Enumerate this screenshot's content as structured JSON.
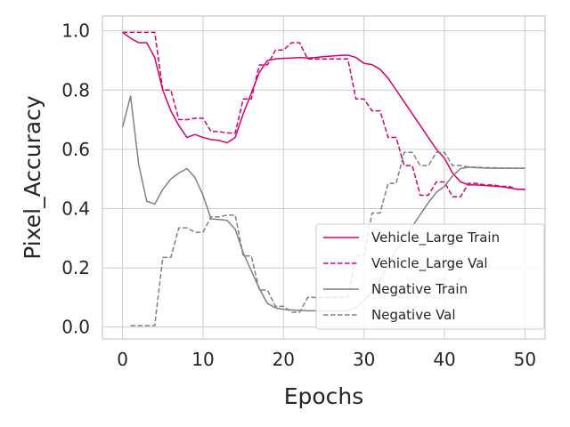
{
  "chart_data": {
    "type": "line",
    "title": "",
    "xlabel": "Epochs",
    "ylabel": "Pixel_Accuracy",
    "xlim": [
      -2.5,
      52.5
    ],
    "ylim": [
      -0.04,
      1.05
    ],
    "xticks": [
      0,
      10,
      20,
      30,
      40,
      50
    ],
    "yticks": [
      0.0,
      0.2,
      0.4,
      0.6,
      0.8,
      1.0
    ],
    "xtick_labels": [
      "0",
      "10",
      "20",
      "30",
      "40",
      "50"
    ],
    "ytick_labels": [
      "0.0",
      "0.2",
      "0.4",
      "0.6",
      "0.8",
      "1.0"
    ],
    "grid": true,
    "legend_position": "lower-right",
    "x": [
      0,
      1,
      2,
      3,
      4,
      5,
      6,
      7,
      8,
      9,
      10,
      11,
      12,
      13,
      14,
      15,
      16,
      17,
      18,
      19,
      20,
      21,
      22,
      23,
      24,
      25,
      26,
      27,
      28,
      29,
      30,
      31,
      32,
      33,
      34,
      35,
      36,
      37,
      38,
      39,
      40,
      41,
      42,
      43,
      44,
      45,
      46,
      47,
      48,
      49,
      50
    ],
    "series": [
      {
        "name": "Vehicle_Large Train",
        "color": "#d6006e",
        "dash": "solid",
        "values": [
          0.995,
          0.975,
          0.96,
          0.96,
          0.91,
          0.8,
          0.73,
          0.68,
          0.64,
          0.65,
          0.64,
          0.633,
          0.63,
          0.622,
          0.64,
          0.72,
          0.79,
          0.86,
          0.9,
          0.905,
          0.907,
          0.908,
          0.91,
          0.908,
          0.91,
          0.913,
          0.915,
          0.917,
          0.918,
          0.91,
          0.89,
          0.886,
          0.87,
          0.84,
          0.8,
          0.76,
          0.72,
          0.68,
          0.64,
          0.6,
          0.57,
          0.52,
          0.49,
          0.48,
          0.48,
          0.478,
          0.476,
          0.474,
          0.47,
          0.466,
          0.464
        ]
      },
      {
        "name": "Vehicle_Large Val",
        "color": "#d6006e",
        "dash": "dashed",
        "values": [
          0.995,
          0.995,
          0.995,
          0.995,
          0.995,
          0.8,
          0.8,
          0.7,
          0.7,
          0.705,
          0.705,
          0.66,
          0.66,
          0.655,
          0.655,
          0.77,
          0.77,
          0.885,
          0.885,
          0.935,
          0.935,
          0.96,
          0.96,
          0.905,
          0.905,
          0.905,
          0.905,
          0.905,
          0.905,
          0.77,
          0.77,
          0.73,
          0.73,
          0.64,
          0.64,
          0.545,
          0.545,
          0.445,
          0.445,
          0.49,
          0.49,
          0.44,
          0.44,
          0.485,
          0.485,
          0.48,
          0.48,
          0.475,
          0.475,
          0.465,
          0.465
        ]
      },
      {
        "name": "Negative Train",
        "color": "#808080",
        "dash": "solid",
        "values": [
          0.675,
          0.78,
          0.55,
          0.425,
          0.415,
          0.465,
          0.5,
          0.52,
          0.535,
          0.505,
          0.445,
          0.365,
          0.363,
          0.36,
          0.33,
          0.25,
          0.19,
          0.13,
          0.08,
          0.065,
          0.06,
          0.058,
          0.056,
          0.055,
          0.055,
          0.055,
          0.055,
          0.055,
          0.055,
          0.065,
          0.09,
          0.12,
          0.16,
          0.21,
          0.26,
          0.3,
          0.34,
          0.38,
          0.42,
          0.455,
          0.475,
          0.51,
          0.535,
          0.54,
          0.538,
          0.537,
          0.536,
          0.536,
          0.536,
          0.536,
          0.536
        ]
      },
      {
        "name": "Negative Val",
        "color": "#808080",
        "dash": "dashed",
        "values": [
          null,
          0.005,
          0.005,
          0.005,
          0.005,
          0.235,
          0.235,
          0.335,
          0.335,
          0.32,
          0.32,
          0.372,
          0.372,
          0.378,
          0.378,
          0.24,
          0.24,
          0.125,
          0.125,
          0.07,
          0.07,
          0.05,
          0.05,
          0.1,
          0.1,
          0.1,
          0.1,
          0.1,
          0.1,
          0.24,
          0.24,
          0.385,
          0.385,
          0.485,
          0.485,
          0.59,
          0.59,
          0.545,
          0.545,
          0.59,
          0.59,
          0.545,
          0.545,
          0.54,
          0.54,
          0.538,
          0.538,
          0.537,
          0.537,
          0.536,
          0.536
        ]
      }
    ]
  }
}
